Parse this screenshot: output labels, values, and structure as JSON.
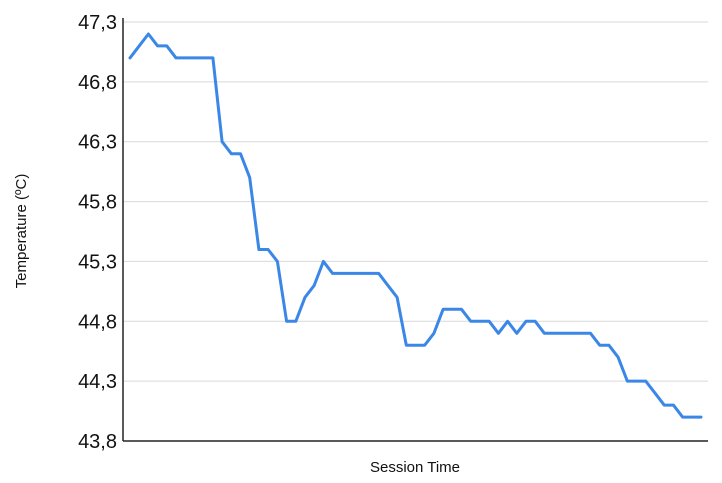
{
  "chart_data": {
    "type": "line",
    "xlabel": "Session Time",
    "ylabel": "Temperature (ºC)",
    "yticks": [
      "43,8",
      "44,3",
      "44,8",
      "45,3",
      "45,8",
      "46,3",
      "46,8",
      "47,3"
    ],
    "ytick_values": [
      43.8,
      44.3,
      44.8,
      45.3,
      45.8,
      46.3,
      46.8,
      47.3
    ],
    "ylim": [
      43.8,
      47.3
    ],
    "grid": true,
    "legend": "none",
    "line_color": "#3a87e8",
    "series": [
      {
        "values": [
          47.0,
          47.1,
          47.2,
          47.1,
          47.1,
          47.0,
          47.0,
          47.0,
          47.0,
          47.0,
          46.3,
          46.2,
          46.2,
          46.0,
          45.4,
          45.4,
          45.3,
          44.8,
          44.8,
          45.0,
          45.1,
          45.3,
          45.2,
          45.2,
          45.2,
          45.2,
          45.2,
          45.2,
          45.1,
          45.0,
          44.6,
          44.6,
          44.6,
          44.7,
          44.9,
          44.9,
          44.9,
          44.8,
          44.8,
          44.8,
          44.7,
          44.8,
          44.7,
          44.8,
          44.8,
          44.7,
          44.7,
          44.7,
          44.7,
          44.7,
          44.7,
          44.6,
          44.6,
          44.5,
          44.3,
          44.3,
          44.3,
          44.2,
          44.1,
          44.1,
          44.0,
          44.0,
          44.0
        ]
      }
    ]
  }
}
